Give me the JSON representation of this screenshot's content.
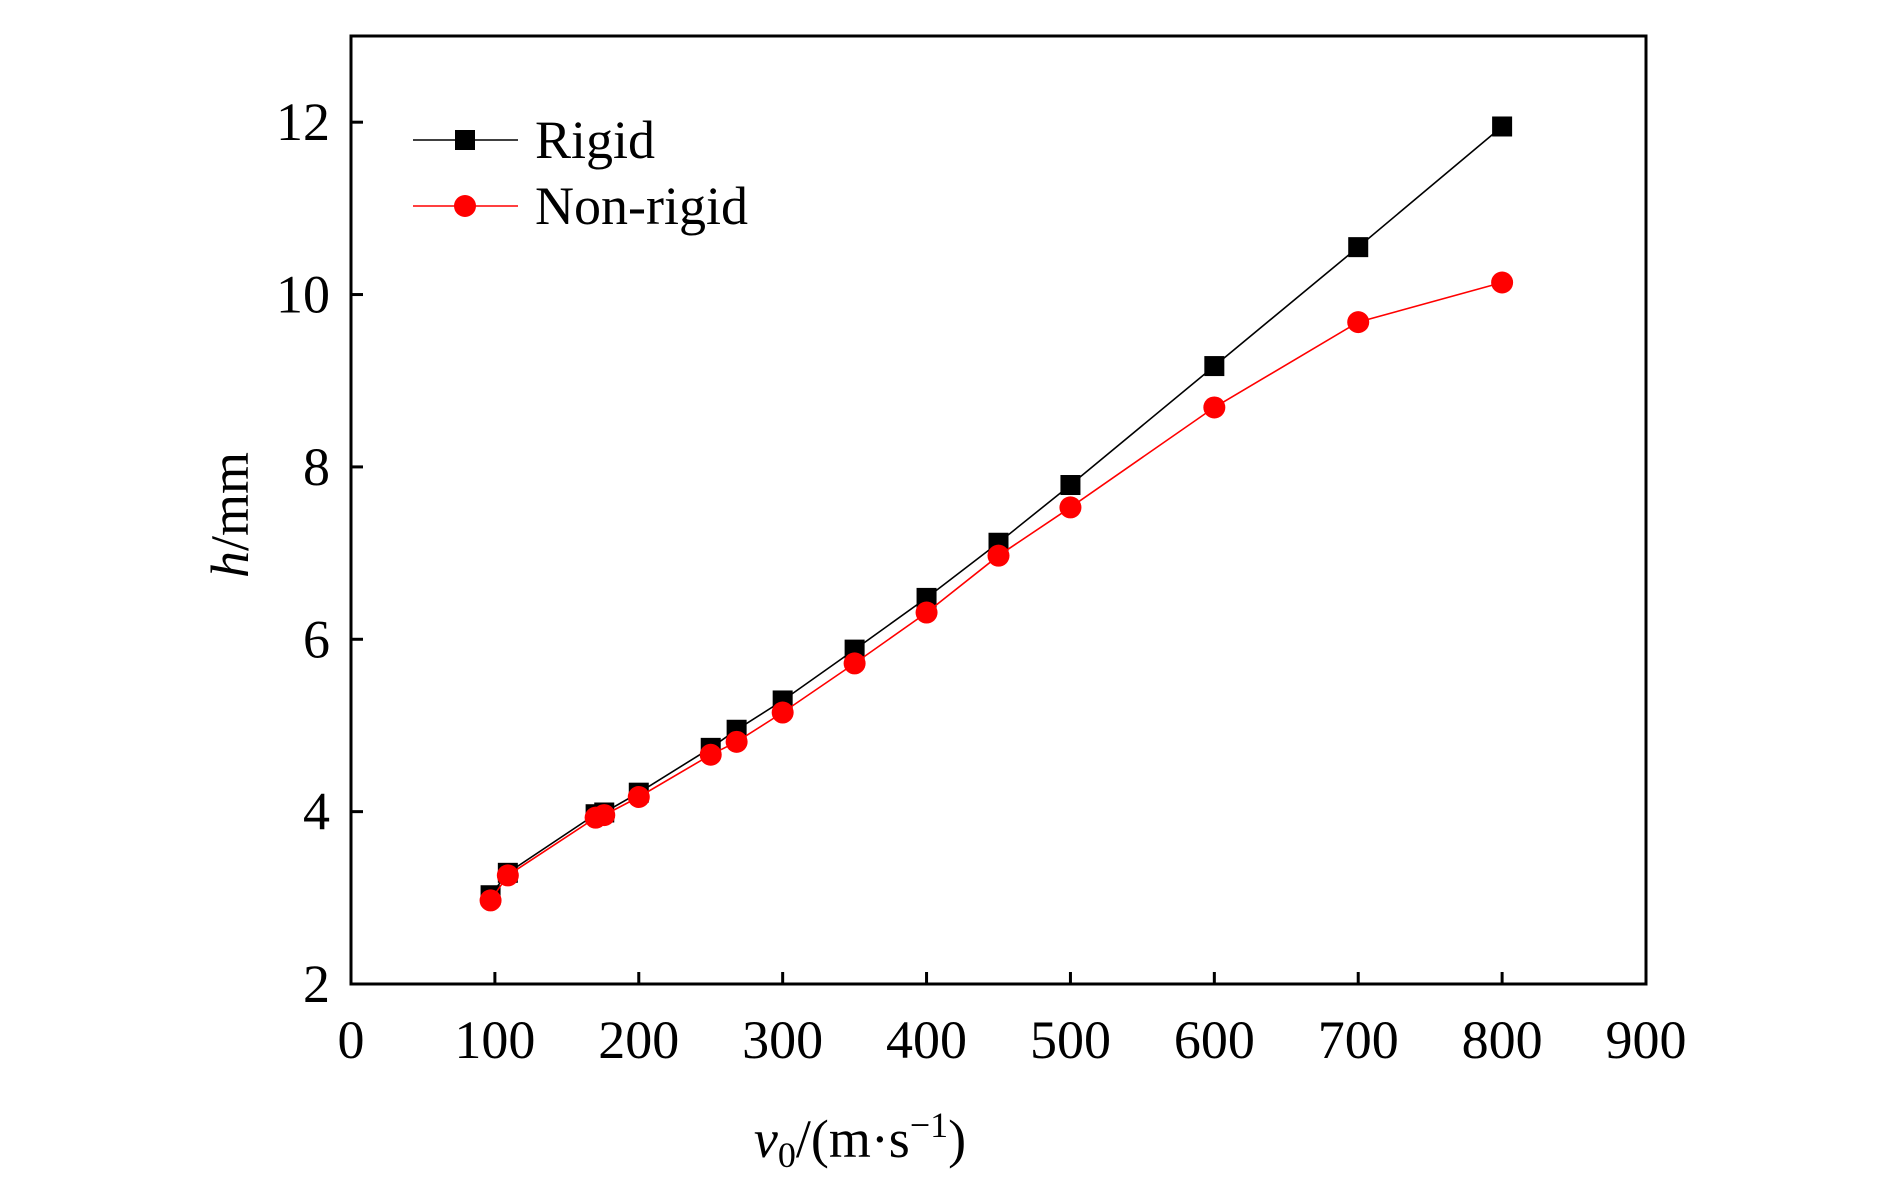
{
  "chart_data": {
    "type": "line",
    "title": "",
    "xlabel": "v0/(m·s−1)",
    "xlabel_parts": {
      "var": "v",
      "sub": "0",
      "rest": "/(m·s",
      "sup": "−1",
      "close": ")"
    },
    "ylabel": "h/mm",
    "ylabel_parts": {
      "var": "h",
      "rest": "/mm"
    },
    "xlim": [
      0,
      900
    ],
    "ylim": [
      2,
      13
    ],
    "xticks": [
      0,
      100,
      200,
      300,
      400,
      500,
      600,
      700,
      800,
      900
    ],
    "yticks": [
      2,
      4,
      6,
      8,
      10,
      12
    ],
    "grid": false,
    "legend_position": "top-left",
    "series": [
      {
        "name": "Rigid",
        "color": "#000000",
        "marker": "square",
        "x": [
          97,
          109,
          170,
          176,
          200,
          250,
          268,
          300,
          350,
          400,
          450,
          500,
          600,
          700,
          800
        ],
        "y": [
          3.03,
          3.29,
          3.97,
          3.99,
          4.22,
          4.74,
          4.95,
          5.29,
          5.88,
          6.48,
          7.12,
          7.79,
          9.17,
          10.55,
          11.95
        ]
      },
      {
        "name": "Non-rigid",
        "color": "#ff0000",
        "marker": "circle",
        "x": [
          97,
          109,
          170,
          176,
          200,
          250,
          268,
          300,
          350,
          400,
          450,
          500,
          600,
          700,
          800
        ],
        "y": [
          2.97,
          3.26,
          3.93,
          3.96,
          4.17,
          4.66,
          4.81,
          5.15,
          5.72,
          6.31,
          6.97,
          7.53,
          8.69,
          9.68,
          10.14
        ]
      }
    ]
  }
}
